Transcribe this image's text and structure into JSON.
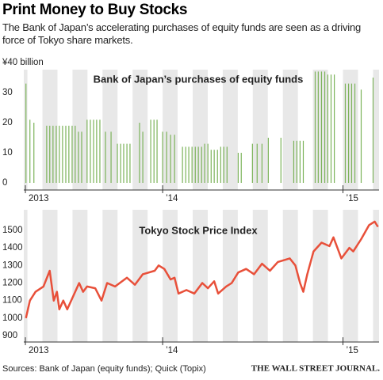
{
  "title": "Print Money to Buy Stocks",
  "subtitle": "The Bank of Japan’s accelerating purchases of equity funds are seen as a driving force of Tokyo share markets.",
  "source": "Sources: Bank of Japan (equity funds); Quick (Topix)",
  "brand": "THE WALL STREET JOURNAL.",
  "chart_data": [
    {
      "type": "bar",
      "title": "Bank of Japan’s purchases of equity funds",
      "color": "#7cb35a",
      "x": [
        2013.242,
        2013.264,
        2013.286,
        2013.357,
        2013.374,
        2013.392,
        2013.41,
        2013.427,
        2013.445,
        2013.463,
        2013.48,
        2013.498,
        2013.515,
        2013.533,
        2013.551,
        2013.581,
        2013.599,
        2013.617,
        2013.634,
        2013.652,
        2013.683,
        2013.714,
        2013.749,
        2013.767,
        2013.784,
        2013.802,
        2013.819,
        2013.872,
        2013.89,
        2013.934,
        2013.952,
        2013.969,
        2014.0,
        2014.022,
        2014.044,
        2014.066,
        2014.11,
        2014.128,
        2014.145,
        2014.163,
        2014.181,
        2014.198,
        2014.216,
        2014.233,
        2014.251,
        2014.269,
        2014.286,
        2014.304,
        2014.322,
        2014.339,
        2014.357,
        2014.419,
        2014.436,
        2014.498,
        2014.524,
        2014.551,
        2014.586,
        2014.656,
        2014.727,
        2014.744,
        2014.762,
        2014.78,
        2014.846,
        2014.863,
        2014.881,
        2014.899,
        2014.916,
        2014.934,
        2014.952,
        2015.013,
        2015.031,
        2015.048,
        2015.066,
        2015.101,
        2015.167
      ],
      "values": [
        33,
        21,
        20,
        19,
        19,
        19,
        19,
        19,
        19,
        19,
        19,
        19,
        19,
        17,
        17,
        21,
        21,
        21,
        21,
        21,
        17,
        17,
        13,
        13,
        13,
        13,
        13,
        20,
        17,
        21,
        21,
        21,
        17,
        17,
        16,
        16,
        12,
        12,
        12,
        12,
        12,
        12,
        12,
        13,
        13,
        11,
        11,
        11,
        12,
        12,
        12,
        10,
        10,
        13,
        13,
        13,
        15,
        15,
        14,
        14,
        14,
        14,
        37,
        37,
        37,
        37,
        36,
        36,
        36,
        33,
        33,
        33,
        33,
        31,
        35
      ],
      "xlim": [
        2013.23,
        2015.2
      ],
      "xticks": [
        {
          "value": 2013,
          "label": "2013"
        },
        {
          "value": 2014,
          "label": "’14"
        },
        {
          "value": 2015,
          "label": "’15"
        }
      ],
      "ylim": [
        0,
        40
      ],
      "yticks": [
        0,
        10,
        20,
        30,
        {
          "value": 40,
          "label": "¥40 billion"
        }
      ]
    },
    {
      "type": "line",
      "title": "Tokyo Stock Price Index",
      "color": "#e8503a",
      "x": [
        2013.242,
        2013.264,
        2013.295,
        2013.339,
        2013.374,
        2013.396,
        2013.414,
        2013.427,
        2013.449,
        2013.471,
        2013.493,
        2013.515,
        2013.537,
        2013.559,
        2013.581,
        2013.626,
        2013.661,
        2013.692,
        2013.736,
        2013.802,
        2013.846,
        2013.89,
        2013.956,
        2013.978,
        2014.009,
        2014.044,
        2014.066,
        2014.088,
        2014.132,
        2014.176,
        2014.22,
        2014.251,
        2014.286,
        2014.308,
        2014.352,
        2014.383,
        2014.419,
        2014.463,
        2014.507,
        2014.551,
        2014.595,
        2014.639,
        2014.705,
        2014.736,
        2014.762,
        2014.78,
        2014.802,
        2014.837,
        2014.881,
        2014.925,
        2014.947,
        2014.969,
        2014.991,
        2015.035,
        2015.057,
        2015.101,
        2015.145,
        2015.176,
        2015.194
      ],
      "values": [
        1000,
        1100,
        1150,
        1180,
        1270,
        1100,
        1150,
        1050,
        1100,
        1050,
        1100,
        1150,
        1200,
        1150,
        1180,
        1170,
        1100,
        1200,
        1180,
        1230,
        1190,
        1250,
        1270,
        1300,
        1280,
        1220,
        1230,
        1140,
        1160,
        1140,
        1200,
        1170,
        1210,
        1140,
        1180,
        1200,
        1260,
        1280,
        1250,
        1310,
        1270,
        1320,
        1340,
        1300,
        1200,
        1150,
        1250,
        1380,
        1430,
        1410,
        1460,
        1400,
        1340,
        1400,
        1380,
        1450,
        1530,
        1550,
        1520
      ],
      "xlim": [
        2013.23,
        2015.2
      ],
      "xticks": [
        {
          "value": 2013,
          "label": "2013"
        },
        {
          "value": 2014,
          "label": "’14"
        },
        {
          "value": 2015,
          "label": "’15"
        }
      ],
      "ylim": [
        864,
        1617
      ],
      "yticks": [
        900,
        1000,
        1100,
        1200,
        1300,
        1400,
        1500
      ]
    }
  ]
}
